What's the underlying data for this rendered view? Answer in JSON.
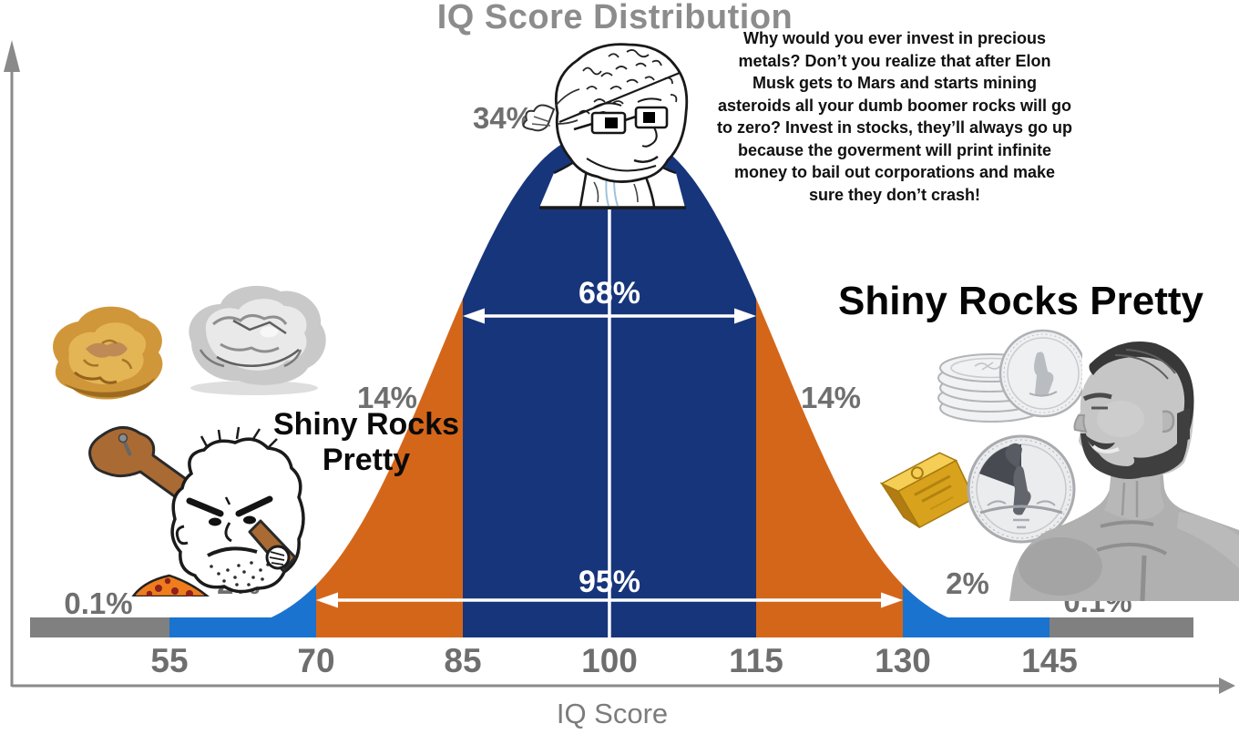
{
  "title": "IQ Score Distribution",
  "x_axis_label": "IQ Score",
  "chart_data": {
    "type": "area",
    "subtype": "normal-distribution-bell-curve",
    "mean": 100,
    "sd": 15,
    "x_ticks": [
      55,
      70,
      85,
      100,
      115,
      130,
      145
    ],
    "xlabel": "IQ Score",
    "grid": false,
    "legend": "none",
    "segments": [
      {
        "from": null,
        "to": 55,
        "percent": "0.1%",
        "color": "#808080",
        "name": "tail-below-55"
      },
      {
        "from": 55,
        "to": 70,
        "percent": "2%",
        "color": "#1b73d0",
        "name": "band-55-70"
      },
      {
        "from": 70,
        "to": 85,
        "percent": "14%",
        "color": "#d4661a",
        "name": "band-70-85"
      },
      {
        "from": 85,
        "to": 115,
        "percent": "34% left of mean + 34% right of mean",
        "color": "#17357b",
        "name": "band-85-115"
      },
      {
        "from": 115,
        "to": 130,
        "percent": "14%",
        "color": "#d4661a",
        "name": "band-115-130"
      },
      {
        "from": 130,
        "to": 145,
        "percent": "2%",
        "color": "#1b73d0",
        "name": "band-130-145"
      },
      {
        "from": 145,
        "to": null,
        "percent": "0.1%",
        "color": "#808080",
        "name": "tail-above-145"
      }
    ],
    "percent_labels": [
      "0.1%",
      "2%",
      "14%",
      "34%",
      "14%",
      "2%",
      "0.1%"
    ],
    "spans": [
      {
        "label": "68%",
        "from": 85,
        "to": 115
      },
      {
        "label": "95%",
        "from": 70,
        "to": 130
      }
    ]
  },
  "captions": {
    "left": [
      "Shiny Rocks",
      "Pretty"
    ],
    "right": "Shiny Rocks Pretty"
  },
  "midwit_speech": [
    "Why would you ever invest in precious",
    "metals? Don’t you realize that after Elon",
    "Musk gets to Mars and starts mining",
    "asteroids all your dumb boomer rocks will go",
    "to zero? Invest in stocks, they’ll always go up",
    "because the goverment will print infinite",
    "money to bail out corporations and make",
    "sure they don’t crash!"
  ],
  "figures": [
    {
      "name": "gold-nugget-image"
    },
    {
      "name": "silver-nugget-image"
    },
    {
      "name": "caveman-wojak-image"
    },
    {
      "name": "midwit-wojak-image"
    },
    {
      "name": "silver-coin-stack-image"
    },
    {
      "name": "gold-bar-image"
    },
    {
      "name": "silver-libertad-coin-image"
    },
    {
      "name": "gigachad-image"
    }
  ],
  "colors": {
    "tail_gray": "#808080",
    "outer_blue": "#1b73d0",
    "mid_orange": "#d4661a",
    "center_navy": "#17357b",
    "percent_label_gray": "#6f6f6f",
    "tick_gray": "#6e6e6e",
    "title_gray": "#8c8c8c",
    "axis_gray": "#8a8a8a",
    "span_text_white": "#ffffff",
    "caption_black": "#0a0a0a"
  }
}
